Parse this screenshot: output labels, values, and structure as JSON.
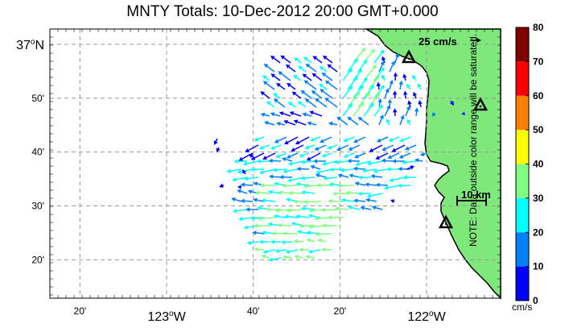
{
  "title": "MNTY Totals: 10-Dec-2012 20:00 GMT+0.000",
  "map": {
    "lat_labels": [
      {
        "text": "37",
        "sup": "o",
        "suffix": "N",
        "lat": 37.0,
        "major": true
      },
      {
        "text": "50'",
        "lat": 36.8333,
        "major": false
      },
      {
        "text": "40'",
        "lat": 36.6667,
        "major": false
      },
      {
        "text": "30'",
        "lat": 36.5,
        "major": false
      },
      {
        "text": "20'",
        "lat": 36.3333,
        "major": false
      }
    ],
    "lon_labels": [
      {
        "text": "20'",
        "lon": -123.3333,
        "major": false
      },
      {
        "text": "123",
        "sup": "o",
        "suffix": "W",
        "lon": -123.0,
        "major": true
      },
      {
        "text": "40'",
        "lon": -122.6667,
        "major": false
      },
      {
        "text": "20'",
        "lon": -122.3333,
        "major": false
      },
      {
        "text": "122",
        "sup": "o",
        "suffix": "W",
        "lon": -122.0,
        "major": true
      }
    ],
    "land_color": "#7ee87a",
    "coast_color": "#000000",
    "scale_vector_label": "25 cm/s",
    "scale_bar_label": "10 km",
    "stations": [
      "site-1",
      "site-2",
      "site-3"
    ]
  },
  "colorbar": {
    "ticks": [
      "0",
      "10",
      "20",
      "30",
      "40",
      "50",
      "60",
      "70",
      "80"
    ],
    "colors": [
      "#0000ff",
      "#0080ff",
      "#00ffff",
      "#80ff80",
      "#ffff00",
      "#ff8000",
      "#ff0000",
      "#800000"
    ],
    "unit": "cm/s",
    "note": "NOTE: Data outside color range will be saturated."
  }
}
